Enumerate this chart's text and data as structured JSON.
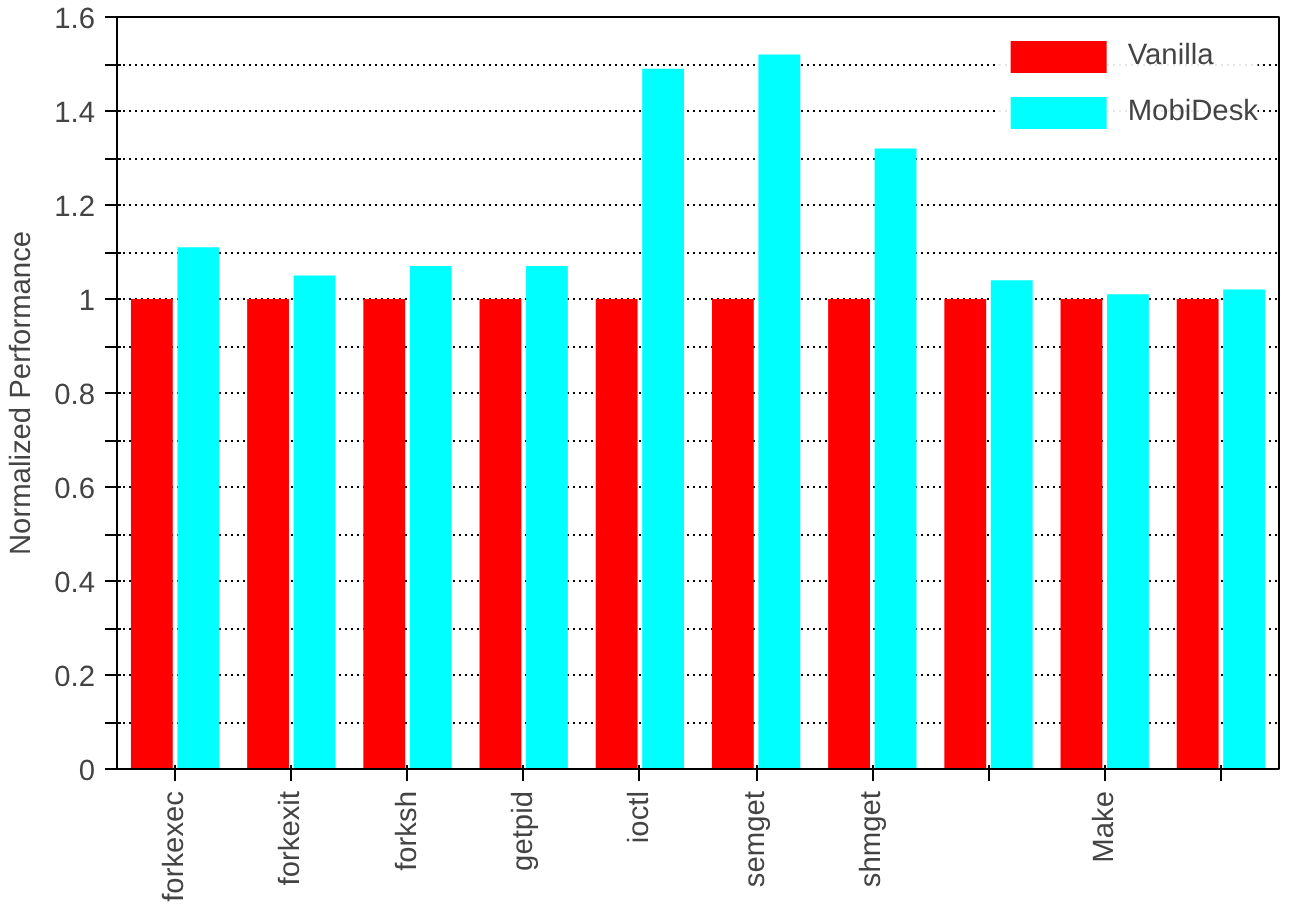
{
  "chart_data": {
    "type": "bar",
    "ylabel": "Normalized Performance",
    "categories": [
      "forkexec",
      "forkexit",
      "forksh",
      "getpid",
      "ioctl",
      "semget",
      "shmget",
      null,
      "Make",
      null
    ],
    "series": [
      {
        "name": "Vanilla",
        "color": "#ff0000",
        "values": [
          1,
          1,
          1,
          1,
          1,
          1,
          1,
          1,
          1,
          1
        ]
      },
      {
        "name": "MobiDesk",
        "color": "#00ffff",
        "values": [
          1.11,
          1.05,
          1.07,
          1.07,
          1.49,
          1.52,
          1.32,
          1.04,
          1.01,
          1.02
        ]
      }
    ],
    "ylim": [
      0,
      1.6
    ],
    "yticks": [
      0,
      {
        "value": 0.1,
        "label": null
      },
      0.2,
      {
        "value": 0.3,
        "label": null
      },
      0.4,
      {
        "value": 0.5,
        "label": null
      },
      0.6,
      {
        "value": 0.7,
        "label": null
      },
      0.8,
      {
        "value": 0.9,
        "label": null
      },
      1,
      {
        "value": 1.1,
        "label": null
      },
      1.2,
      {
        "value": 1.3,
        "label": null
      },
      1.4,
      {
        "value": 1.5,
        "label": null
      },
      1.6
    ],
    "grid": "y",
    "legend": "top right"
  }
}
